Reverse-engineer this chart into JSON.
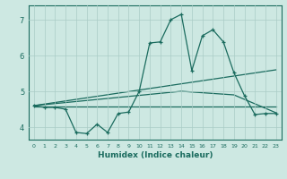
{
  "title": "",
  "xlabel": "Humidex (Indice chaleur)",
  "background_color": "#cde8e2",
  "line_color": "#1a6b5e",
  "grid_color": "#aaccc6",
  "xlim": [
    -0.5,
    23.5
  ],
  "ylim": [
    3.65,
    7.4
  ],
  "yticks": [
    4,
    5,
    6,
    7
  ],
  "xticks": [
    0,
    1,
    2,
    3,
    4,
    5,
    6,
    7,
    8,
    9,
    10,
    11,
    12,
    13,
    14,
    15,
    16,
    17,
    18,
    19,
    20,
    21,
    22,
    23
  ],
  "series1_x": [
    0,
    1,
    2,
    3,
    4,
    5,
    6,
    7,
    8,
    9,
    10,
    11,
    12,
    13,
    14,
    15,
    16,
    17,
    18,
    19,
    20,
    21,
    22,
    23
  ],
  "series1_y": [
    4.6,
    4.55,
    4.55,
    4.5,
    3.85,
    3.82,
    4.08,
    3.85,
    4.38,
    4.42,
    5.0,
    6.35,
    6.38,
    7.0,
    7.15,
    5.58,
    6.55,
    6.72,
    6.38,
    5.52,
    4.88,
    4.35,
    4.38,
    4.38
  ],
  "series2_x": [
    0,
    23
  ],
  "series2_y": [
    4.6,
    5.6
  ],
  "series3_x": [
    0,
    14,
    19,
    23
  ],
  "series3_y": [
    4.6,
    5.0,
    4.9,
    4.4
  ],
  "series4_x": [
    0,
    23
  ],
  "series4_y": [
    4.57,
    4.57
  ]
}
